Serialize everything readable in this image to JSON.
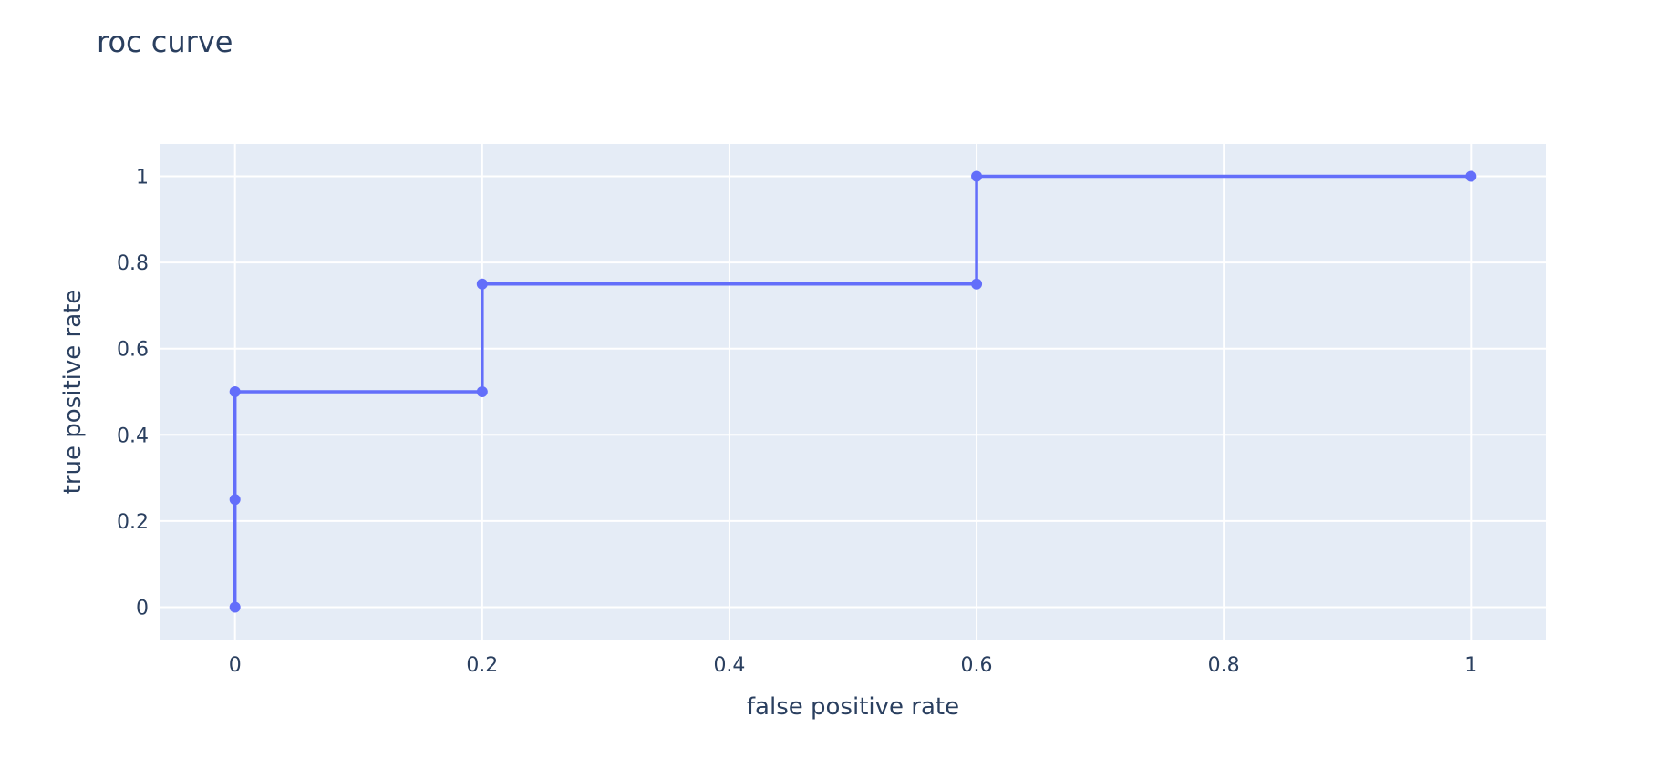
{
  "chart_data": {
    "type": "line",
    "title": "roc curve",
    "xlabel": "false positive rate",
    "ylabel": "true positive rate",
    "xlim": [
      -0.061,
      1.061
    ],
    "ylim": [
      -0.075,
      1.075
    ],
    "x_ticks": [
      0,
      0.2,
      0.4,
      0.6,
      0.8,
      1
    ],
    "x_tick_labels": [
      "0",
      "0.2",
      "0.4",
      "0.6",
      "0.8",
      "1"
    ],
    "y_ticks": [
      0,
      0.2,
      0.4,
      0.6,
      0.8,
      1
    ],
    "y_tick_labels": [
      "0",
      "0.2",
      "0.4",
      "0.6",
      "0.8",
      "1"
    ],
    "grid": true,
    "legend": false,
    "series": [
      {
        "x": [
          0,
          0,
          0,
          0.2,
          0.2,
          0.6,
          0.6,
          1
        ],
        "y": [
          0,
          0.25,
          0.5,
          0.5,
          0.75,
          0.75,
          1,
          1
        ],
        "mode": "lines+markers",
        "color": "#636efa"
      }
    ]
  },
  "colors": {
    "plot_background": "#e5ecf6",
    "grid": "#ffffff",
    "text": "#2a3f5f"
  }
}
